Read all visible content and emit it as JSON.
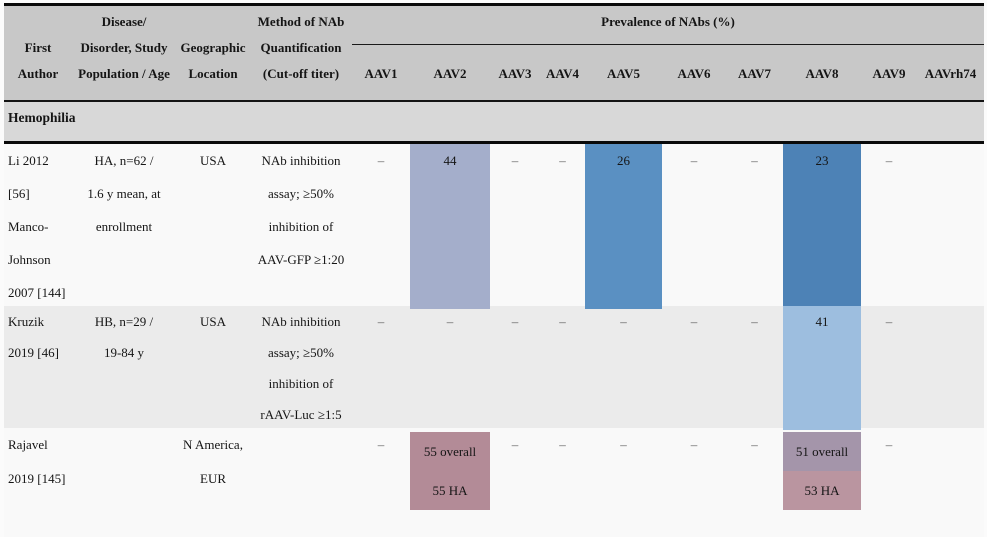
{
  "header": {
    "first_author": [
      "",
      "First",
      "Author"
    ],
    "disease": [
      "Disease/",
      "Disorder, Study",
      "Population / Age"
    ],
    "geographic": [
      "",
      "Geographic",
      "Location"
    ],
    "method": [
      "Method of NAb",
      "Quantification",
      "(Cut-off titer)"
    ],
    "prevalence_group": "Prevalence of NAbs (%)",
    "serotypes": [
      "AAV1",
      "AAV2",
      "AAV3",
      "AAV4",
      "AAV5",
      "AAV6",
      "AAV7",
      "AAV8",
      "AAV9",
      "AAVrh74"
    ]
  },
  "section": {
    "label": "Hemophilia"
  },
  "rows": [
    {
      "author": [
        "Li 2012",
        "[56]",
        "Manco-",
        "Johnson",
        "2007 [144]"
      ],
      "disease": [
        "HA, n=62 /",
        "1.6 y mean, at",
        "enrollment"
      ],
      "location": [
        "USA"
      ],
      "method": [
        "NAb inhibition",
        "assay; ≥50%",
        "inhibition of",
        "AAV-GFP ≥1:20"
      ],
      "values": [
        {
          "text": "–"
        },
        {
          "text": "44",
          "bg": "#a4aecb"
        },
        {
          "text": "–"
        },
        {
          "text": "–"
        },
        {
          "text": "26",
          "bg": "#5a90c2"
        },
        {
          "text": "–"
        },
        {
          "text": "–"
        },
        {
          "text": "23",
          "bg": "#4d82b6"
        },
        {
          "text": "–"
        },
        {
          "text": ""
        }
      ]
    },
    {
      "author": [
        "Kruzik",
        "2019 [46]"
      ],
      "disease": [
        "HB, n=29 /",
        "19-84 y"
      ],
      "location": [
        "USA"
      ],
      "method": [
        "NAb inhibition",
        "assay; ≥50%",
        "inhibition of",
        "rAAV-Luc ≥1:5"
      ],
      "values": [
        {
          "text": "–"
        },
        {
          "text": "–"
        },
        {
          "text": "–"
        },
        {
          "text": "–"
        },
        {
          "text": "–"
        },
        {
          "text": "–"
        },
        {
          "text": "–"
        },
        {
          "text": "41",
          "bg": "#9dbedf"
        },
        {
          "text": "–"
        },
        {
          "text": ""
        }
      ]
    },
    {
      "author": [
        "Rajavel",
        "2019 [145]"
      ],
      "disease": [],
      "location": [
        "N America,",
        "EUR"
      ],
      "method": [],
      "values": [
        {
          "text": "–"
        },
        {
          "lines": [
            "55 overall",
            "55 HA"
          ],
          "bg": "#b38b97",
          "bg2": "#b38b97"
        },
        {
          "text": "–"
        },
        {
          "text": "–"
        },
        {
          "text": "–"
        },
        {
          "text": "–"
        },
        {
          "text": "–"
        },
        {
          "lines": [
            "51 overall",
            "53 HA"
          ],
          "bg": "#a495aa",
          "bg2": "#ba95a0"
        },
        {
          "text": "–"
        },
        {
          "text": ""
        }
      ]
    }
  ]
}
